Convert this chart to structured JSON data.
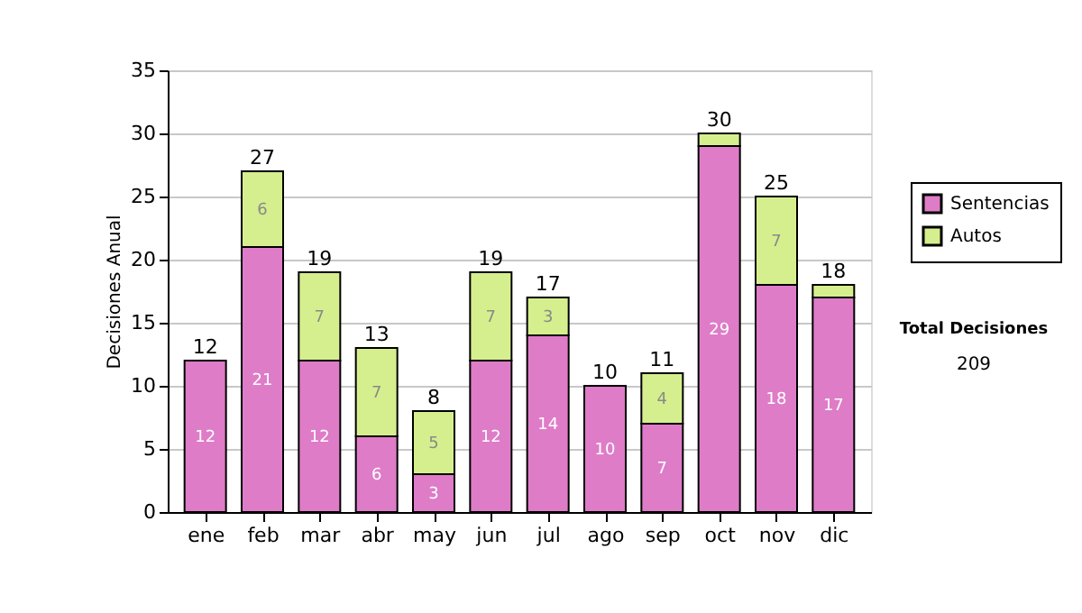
{
  "chart_data": {
    "type": "bar",
    "stacked": true,
    "ylabel": "Decisiones Anual",
    "categories": [
      "ene",
      "feb",
      "mar",
      "abr",
      "may",
      "jun",
      "jul",
      "ago",
      "sep",
      "oct",
      "nov",
      "dic"
    ],
    "series": [
      {
        "name": "Sentencias",
        "color": "#de7cc8",
        "values": [
          12,
          21,
          12,
          6,
          3,
          12,
          14,
          10,
          7,
          29,
          18,
          17
        ],
        "value_labels": [
          "12",
          "21",
          "12",
          "6",
          "3",
          "12",
          "14",
          "10",
          "7",
          "29",
          "18",
          "17"
        ]
      },
      {
        "name": "Autos",
        "color": "#d6ef8e",
        "values": [
          null,
          6,
          7,
          7,
          5,
          7,
          3,
          null,
          4,
          1,
          7,
          1
        ],
        "value_labels": [
          null,
          "6",
          "7",
          "7",
          "5",
          "7",
          "3",
          null,
          "4",
          null,
          "7",
          null
        ]
      }
    ],
    "totals": [
      "12",
      "27",
      "19",
      "13",
      "8",
      "19",
      "17",
      "10",
      "11",
      "30",
      "25",
      "18"
    ],
    "ylim": [
      0,
      35
    ],
    "yticks": [
      0,
      5,
      10,
      15,
      20,
      25,
      30,
      35
    ],
    "grid": "y",
    "legend": "right",
    "annotations": [
      "Total Decisiones",
      "209"
    ]
  }
}
